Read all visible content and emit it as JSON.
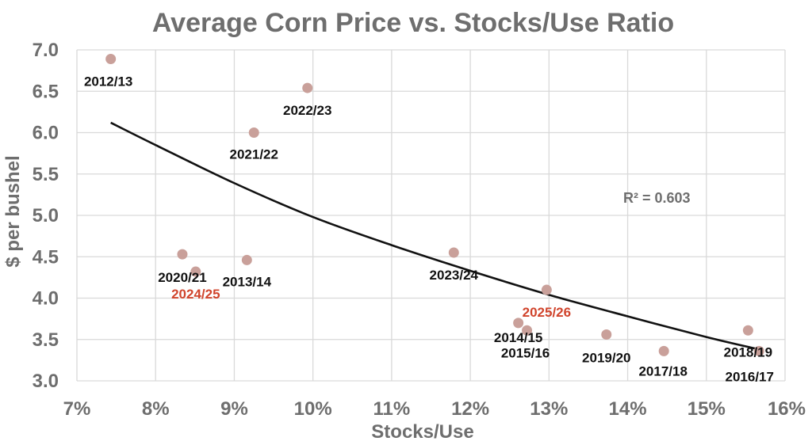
{
  "chart_data": {
    "type": "scatter",
    "title": "Average Corn Price vs. Stocks/Use Ratio",
    "xlabel": "Stocks/Use",
    "ylabel": "$ per bushel",
    "xlim": [
      7,
      16
    ],
    "ylim": [
      3.0,
      7.0
    ],
    "xticks": [
      "7%",
      "8%",
      "9%",
      "10%",
      "11%",
      "12%",
      "13%",
      "14%",
      "15%",
      "16%"
    ],
    "yticks": [
      "3.0",
      "3.5",
      "4.0",
      "4.5",
      "5.0",
      "5.5",
      "6.0",
      "6.5",
      "7.0"
    ],
    "grid": true,
    "point_color": "#c9a09a",
    "highlight_color": "#d0442c",
    "label_color": "#111111",
    "points": [
      {
        "label": "2012/13",
        "x": 7.43,
        "y": 6.89,
        "highlight": false
      },
      {
        "label": "2013/14",
        "x": 9.16,
        "y": 4.46,
        "highlight": false
      },
      {
        "label": "2014/15",
        "x": 12.61,
        "y": 3.7,
        "highlight": false
      },
      {
        "label": "2015/16",
        "x": 12.72,
        "y": 3.61,
        "highlight": false
      },
      {
        "label": "2016/17",
        "x": 15.67,
        "y": 3.36,
        "highlight": false
      },
      {
        "label": "2017/18",
        "x": 14.46,
        "y": 3.36,
        "highlight": false
      },
      {
        "label": "2018/19",
        "x": 15.53,
        "y": 3.61,
        "highlight": false
      },
      {
        "label": "2019/20",
        "x": 13.73,
        "y": 3.56,
        "highlight": false
      },
      {
        "label": "2020/21",
        "x": 8.34,
        "y": 4.53,
        "highlight": false
      },
      {
        "label": "2021/22",
        "x": 9.25,
        "y": 6.0,
        "highlight": false
      },
      {
        "label": "2022/23",
        "x": 9.93,
        "y": 6.54,
        "highlight": false
      },
      {
        "label": "2023/24",
        "x": 11.79,
        "y": 4.55,
        "highlight": false
      },
      {
        "label": "2024/25",
        "x": 8.51,
        "y": 4.32,
        "highlight": true
      },
      {
        "label": "2025/26",
        "x": 12.97,
        "y": 4.1,
        "highlight": true
      }
    ],
    "trendline": {
      "type": "power",
      "color": "#111111",
      "points": [
        {
          "x": 7.43,
          "y": 6.12
        },
        {
          "x": 8.0,
          "y": 5.85
        },
        {
          "x": 9.0,
          "y": 5.39
        },
        {
          "x": 10.0,
          "y": 4.98
        },
        {
          "x": 11.0,
          "y": 4.64
        },
        {
          "x": 12.0,
          "y": 4.33
        },
        {
          "x": 13.0,
          "y": 4.04
        },
        {
          "x": 14.0,
          "y": 3.78
        },
        {
          "x": 15.0,
          "y": 3.53
        },
        {
          "x": 15.67,
          "y": 3.38
        }
      ]
    },
    "annotation": {
      "text": "R² = 0.603",
      "x": 14.37,
      "y": 5.21
    }
  }
}
